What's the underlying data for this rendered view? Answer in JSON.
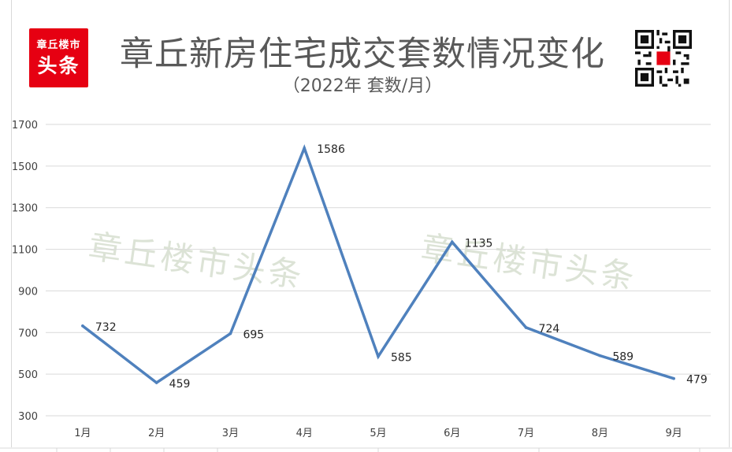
{
  "logo": {
    "line1": "章丘楼市",
    "line2": "头条"
  },
  "qr_icon": "qr-code-icon",
  "watermark_text": "章丘楼市头条",
  "chart_data": {
    "type": "line",
    "title": "章丘新房住宅成交套数情况变化",
    "subtitle": "（2022年 套数/月）",
    "xlabel": "",
    "ylabel": "",
    "categories": [
      "1月",
      "2月",
      "3月",
      "4月",
      "5月",
      "6月",
      "7月",
      "8月",
      "9月"
    ],
    "series": [
      {
        "values": [
          732,
          459,
          695,
          1586,
          585,
          1135,
          724,
          589,
          479
        ],
        "data_labels": [
          "732",
          "459",
          "695",
          "1586",
          "585",
          "1135",
          "724",
          "589",
          "479"
        ]
      }
    ],
    "ylim": [
      300,
      1700
    ],
    "yticks": [
      300,
      500,
      700,
      900,
      1100,
      1300,
      1500,
      1700
    ],
    "ytick_labels": [
      "300",
      "500",
      "700",
      "900",
      "1100",
      "1300",
      "1500",
      "1700"
    ],
    "grid": true,
    "legend": "none",
    "line_color": "#4f81bd",
    "grid_color": "#d9d9d9"
  }
}
